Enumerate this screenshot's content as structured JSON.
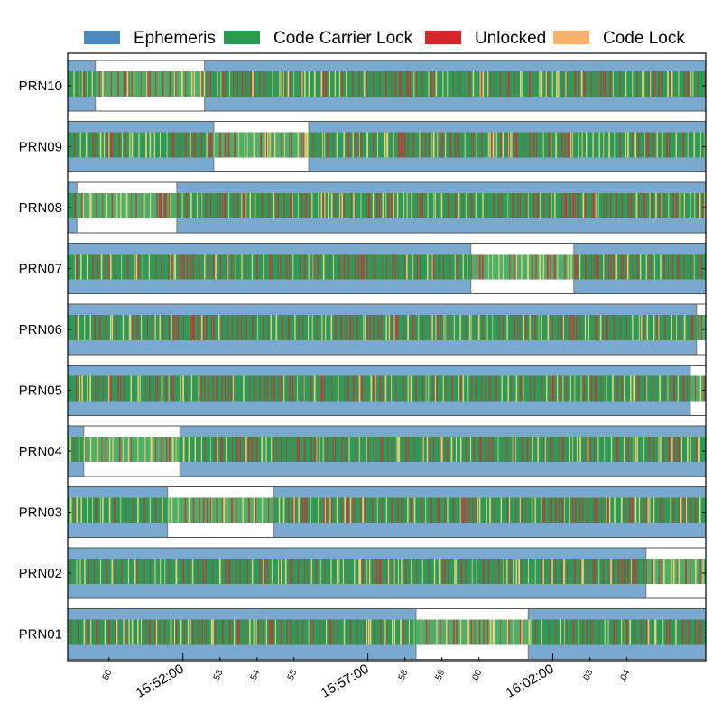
{
  "chart_data": {
    "type": "broken-bar timeline",
    "legend": {
      "placement": "top",
      "entries": [
        {
          "label": "Ephemeris",
          "color": "#4a8ac0"
        },
        {
          "label": "Code Carrier Lock",
          "color": "#2a9a4e"
        },
        {
          "label": "Unlocked",
          "color": "#d62728"
        },
        {
          "label": "Code Lock",
          "color": "#f7b26c"
        }
      ]
    },
    "colors": {
      "ephemeris_band": "#7aa9d0",
      "carrier_lock_fill": "#2e9a5a",
      "carrier_lock_light": "#4caf6a",
      "unlocked": "#c0393b",
      "code_lock": "#f2d37a",
      "row_border": "#555555"
    },
    "x_axis": {
      "range": [
        "15:48:53",
        "16:06:08"
      ],
      "minor_ticks": [
        {
          "time": "15:50:00",
          "label": ":50"
        },
        {
          "time": "15:53:00",
          "label": ":53"
        },
        {
          "time": "15:54:00",
          "label": ":54"
        },
        {
          "time": "15:55:00",
          "label": ":55"
        },
        {
          "time": "15:58:00",
          "label": ":58"
        },
        {
          "time": "15:59:00",
          "label": ":59"
        },
        {
          "time": "16:00:00",
          "label": ":00"
        },
        {
          "time": "16:03:00",
          "label": ":03"
        },
        {
          "time": "16:04:00",
          "label": ":04"
        }
      ],
      "major_ticks": [
        {
          "time": "15:52:00",
          "label": "15:52:00"
        },
        {
          "time": "15:57:00",
          "label": "15:57:00"
        },
        {
          "time": "16:02:00",
          "label": "16:02:00"
        }
      ]
    },
    "rows": [
      {
        "name": "PRN10",
        "ephemeris_gaps": [
          [
            "15:49:38",
            "15:52:35"
          ]
        ]
      },
      {
        "name": "PRN09",
        "ephemeris_gaps": [
          [
            "15:52:50",
            "15:55:24"
          ]
        ]
      },
      {
        "name": "PRN08",
        "ephemeris_gaps": [
          [
            "15:49:08",
            "15:51:50"
          ]
        ]
      },
      {
        "name": "PRN07",
        "ephemeris_gaps": [
          [
            "15:59:47",
            "16:02:34"
          ]
        ]
      },
      {
        "name": "PRN06",
        "ephemeris_gaps": [
          [
            "16:05:53",
            "16:06:08"
          ]
        ]
      },
      {
        "name": "PRN05",
        "ephemeris_gaps": [
          [
            "16:05:43",
            "16:06:08"
          ]
        ]
      },
      {
        "name": "PRN04",
        "ephemeris_gaps": [
          [
            "15:49:19",
            "15:51:55"
          ]
        ]
      },
      {
        "name": "PRN03",
        "ephemeris_gaps": [
          [
            "15:51:35",
            "15:54:27"
          ]
        ]
      },
      {
        "name": "PRN02",
        "ephemeris_gaps": [
          [
            "16:04:31",
            "16:06:08"
          ]
        ]
      },
      {
        "name": "PRN01",
        "ephemeris_gaps": [
          [
            "15:58:18",
            "16:01:20"
          ]
        ]
      }
    ]
  }
}
